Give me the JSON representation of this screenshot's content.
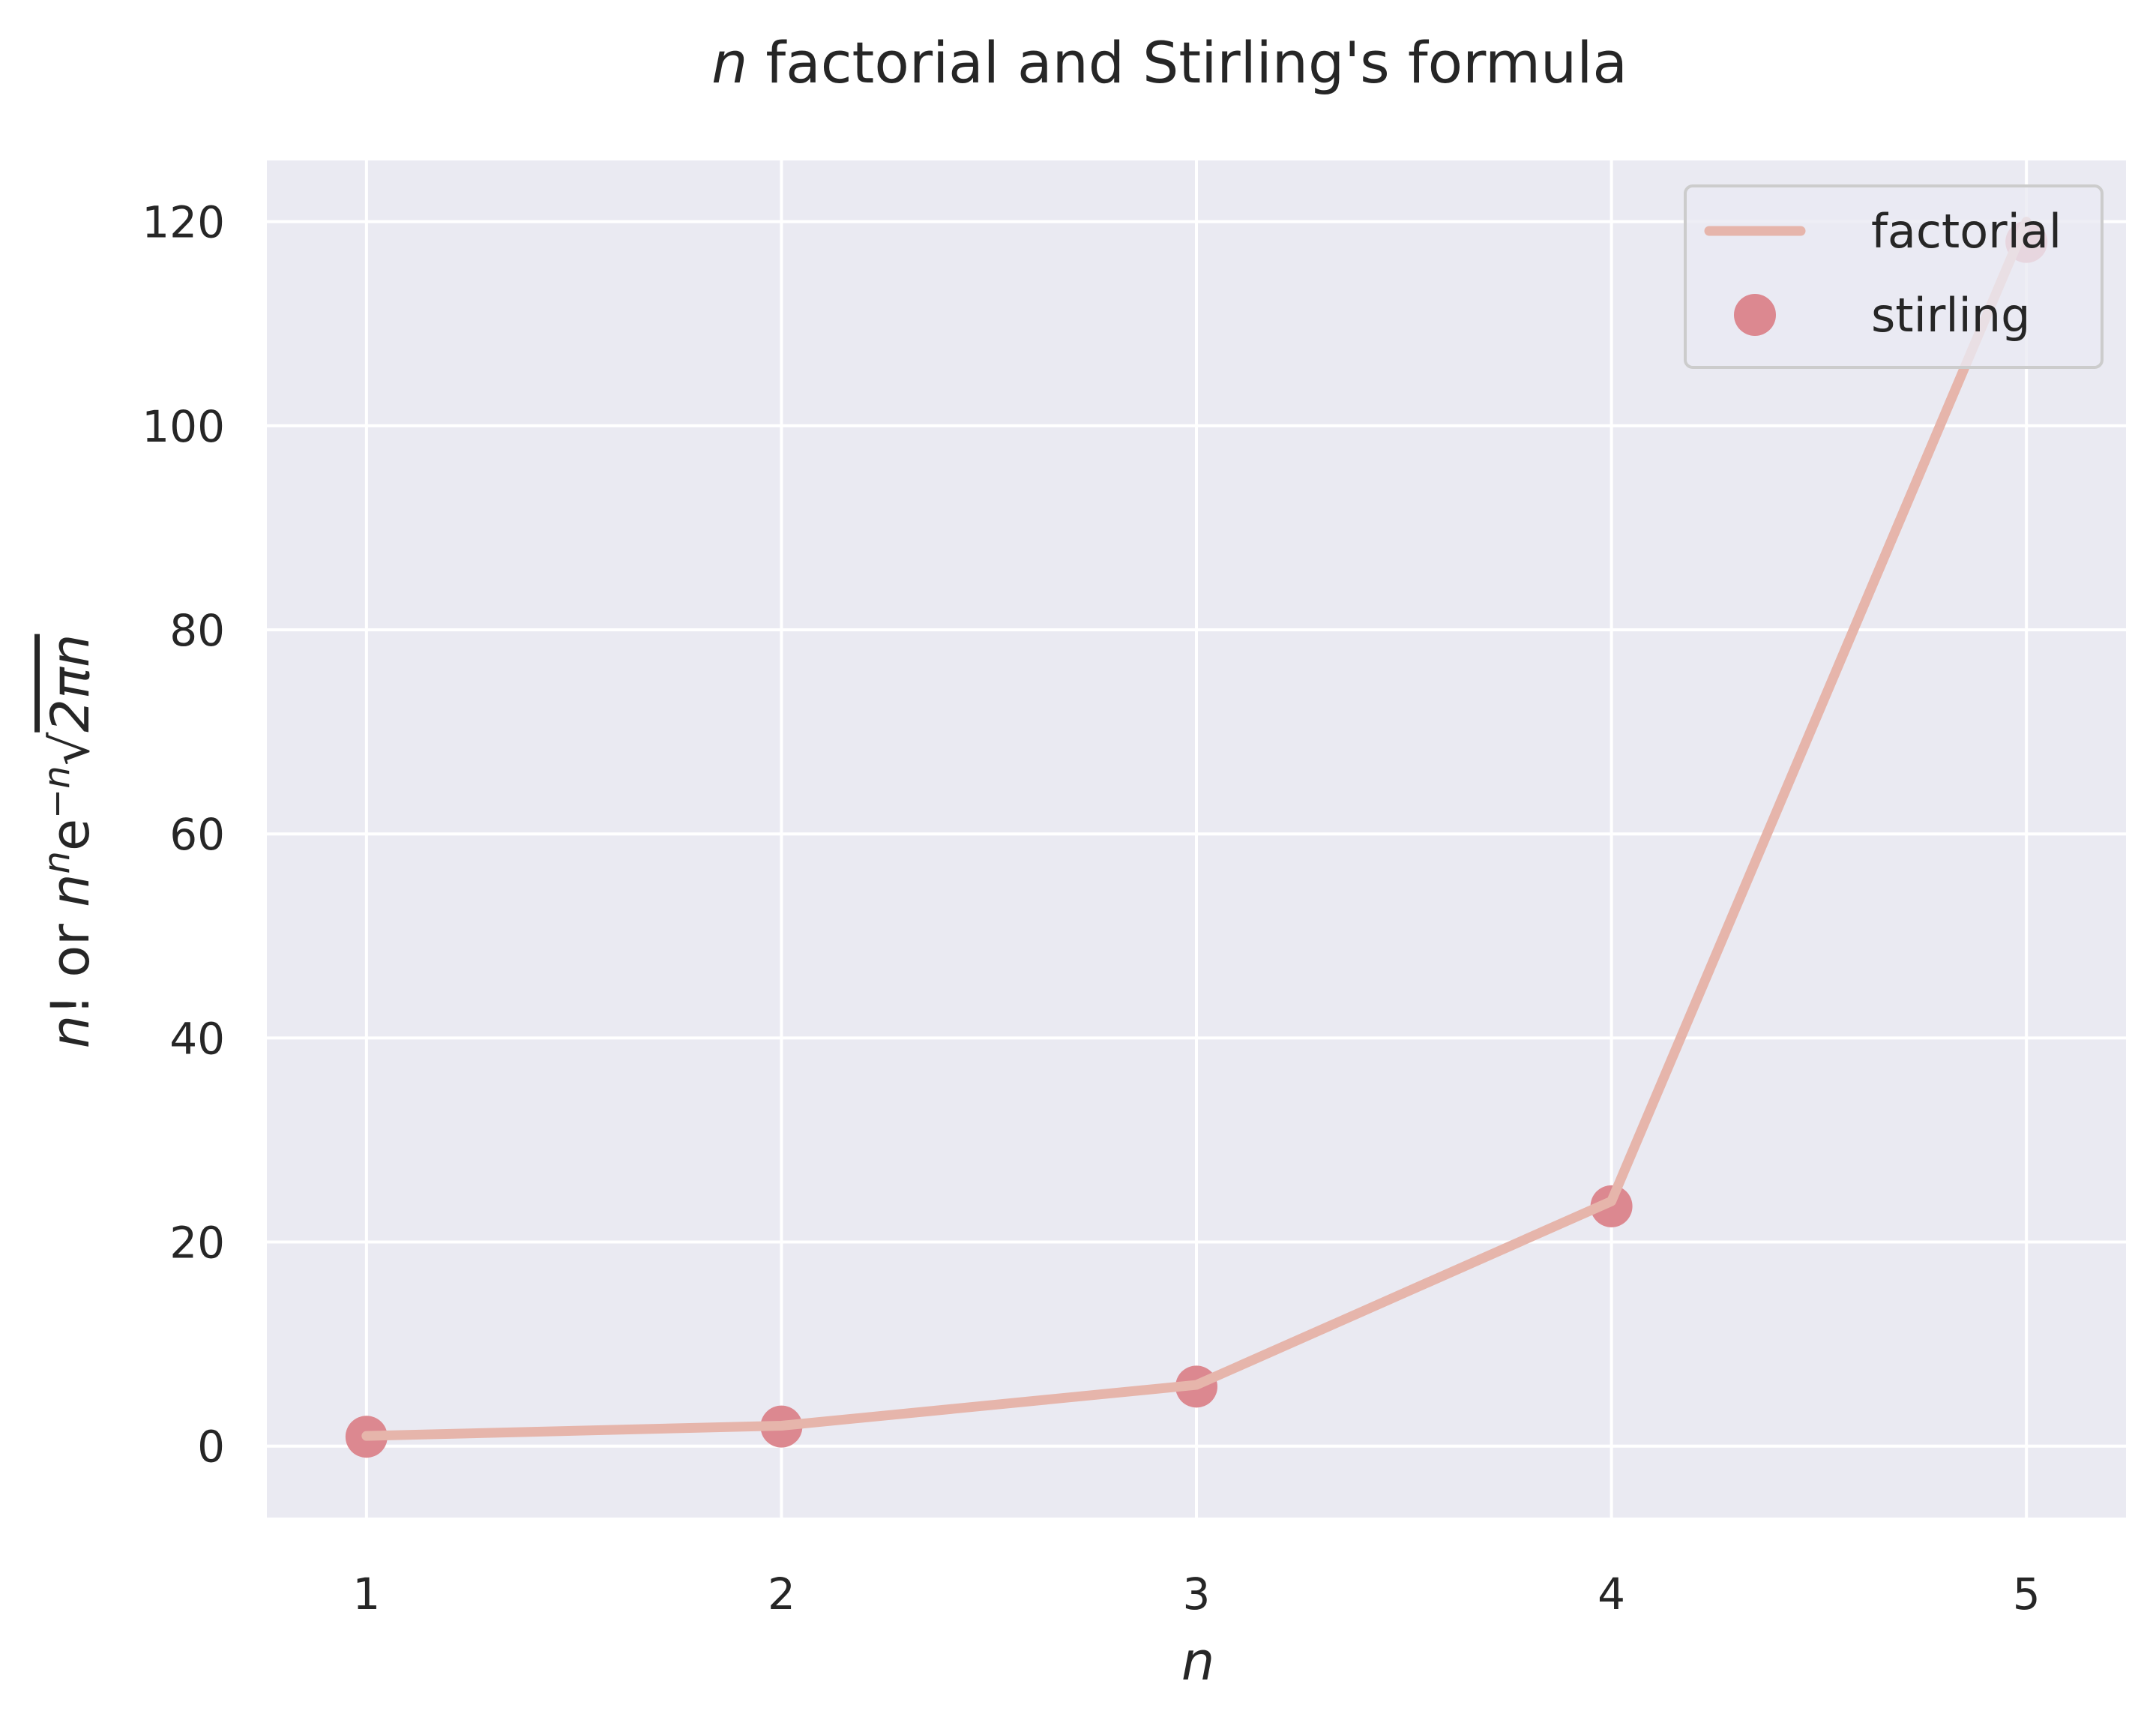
{
  "chart_data": {
    "type": "line",
    "title": {
      "var": "n",
      "text": " factorial and Stirling's formula"
    },
    "xlabel": "n",
    "ylabel": {
      "part1": "n",
      "part2": "! or ",
      "part3": "n",
      "sup1": "n",
      "part4": "e",
      "sup2": "−n",
      "sqrt": "√",
      "radicand": "2πn"
    },
    "x": [
      1,
      2,
      3,
      4,
      5
    ],
    "xticks": [
      "1",
      "2",
      "3",
      "4",
      "5"
    ],
    "yticks": [
      "0",
      "20",
      "40",
      "60",
      "80",
      "100",
      "120"
    ],
    "xlim": [
      0.76,
      5.24
    ],
    "ylim": [
      -7,
      126
    ],
    "grid": true,
    "legend_position": "top-right",
    "series": [
      {
        "name": "factorial",
        "kind": "line",
        "color": "#e6b5ab",
        "values": [
          1,
          2,
          6,
          24,
          120
        ]
      },
      {
        "name": "stirling",
        "kind": "scatter",
        "color": "#dc8890",
        "values": [
          0.922,
          1.919,
          5.836,
          23.506,
          118.019
        ]
      }
    ],
    "colors": {
      "plot_background": "#eaeaf2",
      "grid": "#ffffff",
      "legend_border": "#cccccc"
    }
  }
}
